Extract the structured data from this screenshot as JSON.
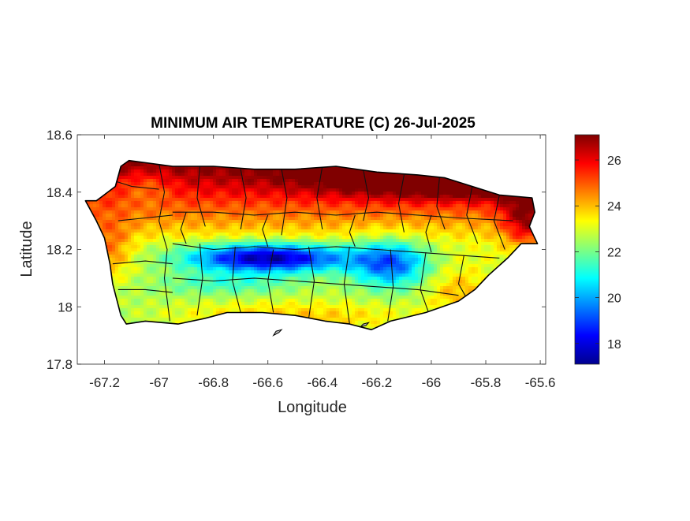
{
  "chart_data": {
    "type": "heatmap",
    "title": "MINIMUM AIR TEMPERATURE (C) 26-Jul-2025",
    "xlabel": "Longitude",
    "ylabel": "Latitude",
    "xlim": [
      -67.3,
      -65.58
    ],
    "ylim": [
      17.8,
      18.6
    ],
    "xticks": [
      -67.2,
      -67,
      -66.8,
      -66.6,
      -66.4,
      -66.2,
      -66,
      -65.8,
      -65.6
    ],
    "xtick_labels": [
      "-67.2",
      "-67",
      "-66.8",
      "-66.6",
      "-66.4",
      "-66.2",
      "-66",
      "-65.8",
      "-65.6"
    ],
    "yticks": [
      17.8,
      18,
      18.2,
      18.4,
      18.6
    ],
    "ytick_labels": [
      "17.8",
      "18",
      "18.2",
      "18.4",
      "18.6"
    ],
    "colorbar": {
      "colormap": "jet",
      "range": [
        17.1,
        27.1
      ],
      "ticks": [
        18,
        20,
        22,
        24,
        26
      ],
      "tick_labels": [
        "18",
        "20",
        "22",
        "24",
        "26"
      ]
    },
    "temperature_field": {
      "base": 23.2,
      "lat_gradient": 14,
      "ref_lat": 18.22,
      "features": [
        {
          "lon": -65.85,
          "lat": 18.45,
          "sx": 0.55,
          "sy": 0.07,
          "amp": 3.4
        },
        {
          "lon": -65.65,
          "lat": 18.3,
          "sx": 0.09,
          "sy": 0.1,
          "amp": 2.6
        },
        {
          "lon": -66.6,
          "lat": 18.17,
          "sx": 0.3,
          "sy": 0.05,
          "amp": -5.5
        },
        {
          "lon": -66.15,
          "lat": 18.15,
          "sx": 0.14,
          "sy": 0.08,
          "amp": -3.5
        },
        {
          "lon": -66.75,
          "lat": 18.08,
          "sx": 0.25,
          "sy": 0.04,
          "amp": -1.2
        },
        {
          "lon": -66.5,
          "lat": 17.96,
          "sx": 0.5,
          "sy": 0.06,
          "amp": 1.6
        },
        {
          "lon": -65.9,
          "lat": 18.05,
          "sx": 0.12,
          "sy": 0.08,
          "amp": 1.4
        },
        {
          "lon": -67.18,
          "lat": 18.2,
          "sx": 0.08,
          "sy": 0.1,
          "amp": 1.6
        },
        {
          "lon": -67.05,
          "lat": 18.42,
          "sx": 0.1,
          "sy": 0.06,
          "amp": -1.0
        }
      ]
    },
    "island_outline": [
      [
        -67.27,
        18.37
      ],
      [
        -67.23,
        18.37
      ],
      [
        -67.16,
        18.42
      ],
      [
        -67.14,
        18.49
      ],
      [
        -67.11,
        18.51
      ],
      [
        -66.95,
        18.49
      ],
      [
        -66.8,
        18.49
      ],
      [
        -66.65,
        18.48
      ],
      [
        -66.5,
        18.48
      ],
      [
        -66.35,
        18.49
      ],
      [
        -66.2,
        18.47
      ],
      [
        -66.05,
        18.46
      ],
      [
        -65.95,
        18.45
      ],
      [
        -65.85,
        18.42
      ],
      [
        -65.75,
        18.39
      ],
      [
        -65.63,
        18.38
      ],
      [
        -65.62,
        18.33
      ],
      [
        -65.64,
        18.28
      ],
      [
        -65.61,
        18.22
      ],
      [
        -65.67,
        18.22
      ],
      [
        -65.72,
        18.17
      ],
      [
        -65.79,
        18.11
      ],
      [
        -65.84,
        18.06
      ],
      [
        -65.9,
        18.02
      ],
      [
        -66.02,
        17.98
      ],
      [
        -66.15,
        17.95
      ],
      [
        -66.22,
        17.92
      ],
      [
        -66.3,
        17.94
      ],
      [
        -66.39,
        17.95
      ],
      [
        -66.5,
        17.97
      ],
      [
        -66.62,
        17.98
      ],
      [
        -66.75,
        17.98
      ],
      [
        -66.83,
        17.96
      ],
      [
        -66.93,
        17.94
      ],
      [
        -67.05,
        17.95
      ],
      [
        -67.12,
        17.94
      ],
      [
        -67.14,
        17.97
      ],
      [
        -67.17,
        18.08
      ],
      [
        -67.18,
        18.15
      ],
      [
        -67.2,
        18.24
      ],
      [
        -67.23,
        18.3
      ]
    ],
    "small_islets": [
      [
        [
          -66.58,
          17.9
        ],
        [
          -66.56,
          17.91
        ],
        [
          -66.55,
          17.92
        ],
        [
          -66.57,
          17.915
        ]
      ],
      [
        [
          -66.26,
          17.93
        ],
        [
          -66.24,
          17.935
        ],
        [
          -66.23,
          17.945
        ],
        [
          -66.25,
          17.94
        ]
      ]
    ],
    "municipal_boundaries": [
      [
        [
          -67.2,
          18.45
        ],
        [
          -67.1,
          18.42
        ],
        [
          -67.0,
          18.41
        ]
      ],
      [
        [
          -67.15,
          18.3
        ],
        [
          -67.05,
          18.31
        ],
        [
          -66.95,
          18.32
        ]
      ],
      [
        [
          -67.17,
          18.15
        ],
        [
          -67.05,
          18.16
        ],
        [
          -66.95,
          18.15
        ]
      ],
      [
        [
          -67.15,
          18.06
        ],
        [
          -67.05,
          18.06
        ],
        [
          -66.95,
          18.05
        ]
      ],
      [
        [
          -67.0,
          18.5
        ],
        [
          -66.98,
          18.4
        ],
        [
          -67.0,
          18.3
        ],
        [
          -66.97,
          18.2
        ],
        [
          -66.98,
          18.1
        ],
        [
          -66.96,
          17.95
        ]
      ],
      [
        [
          -66.85,
          18.49
        ],
        [
          -66.86,
          18.38
        ],
        [
          -66.83,
          18.28
        ]
      ],
      [
        [
          -66.7,
          18.48
        ],
        [
          -66.68,
          18.38
        ],
        [
          -66.7,
          18.27
        ]
      ],
      [
        [
          -66.55,
          18.48
        ],
        [
          -66.53,
          18.38
        ],
        [
          -66.55,
          18.25
        ]
      ],
      [
        [
          -66.4,
          18.49
        ],
        [
          -66.42,
          18.38
        ],
        [
          -66.4,
          18.27
        ]
      ],
      [
        [
          -66.25,
          18.48
        ],
        [
          -66.23,
          18.38
        ],
        [
          -66.25,
          18.3
        ]
      ],
      [
        [
          -66.1,
          18.46
        ],
        [
          -66.12,
          18.36
        ],
        [
          -66.1,
          18.26
        ]
      ],
      [
        [
          -65.97,
          18.45
        ],
        [
          -65.98,
          18.35
        ],
        [
          -65.95,
          18.27
        ]
      ],
      [
        [
          -65.85,
          18.42
        ],
        [
          -65.87,
          18.32
        ],
        [
          -65.83,
          18.22
        ]
      ],
      [
        [
          -65.75,
          18.39
        ],
        [
          -65.77,
          18.3
        ],
        [
          -65.73,
          18.2
        ]
      ],
      [
        [
          -66.95,
          18.33
        ],
        [
          -66.8,
          18.33
        ],
        [
          -66.65,
          18.32
        ],
        [
          -66.5,
          18.33
        ],
        [
          -66.35,
          18.32
        ],
        [
          -66.2,
          18.33
        ],
        [
          -66.05,
          18.32
        ],
        [
          -65.9,
          18.31
        ],
        [
          -65.7,
          18.3
        ]
      ],
      [
        [
          -66.95,
          18.22
        ],
        [
          -66.8,
          18.2
        ],
        [
          -66.65,
          18.21
        ],
        [
          -66.5,
          18.2
        ],
        [
          -66.35,
          18.21
        ],
        [
          -66.2,
          18.2
        ],
        [
          -66.05,
          18.19
        ],
        [
          -65.9,
          18.18
        ],
        [
          -65.75,
          18.17
        ]
      ],
      [
        [
          -66.95,
          18.1
        ],
        [
          -66.8,
          18.09
        ],
        [
          -66.65,
          18.1
        ],
        [
          -66.5,
          18.09
        ],
        [
          -66.35,
          18.08
        ],
        [
          -66.2,
          18.07
        ],
        [
          -66.05,
          18.06
        ],
        [
          -65.9,
          18.04
        ]
      ],
      [
        [
          -66.85,
          18.22
        ],
        [
          -66.84,
          18.1
        ],
        [
          -66.86,
          17.97
        ]
      ],
      [
        [
          -66.72,
          18.21
        ],
        [
          -66.73,
          18.09
        ],
        [
          -66.7,
          17.98
        ]
      ],
      [
        [
          -66.58,
          18.2
        ],
        [
          -66.6,
          18.09
        ],
        [
          -66.58,
          17.98
        ]
      ],
      [
        [
          -66.45,
          18.21
        ],
        [
          -66.43,
          18.09
        ],
        [
          -66.45,
          17.96
        ]
      ],
      [
        [
          -66.3,
          18.21
        ],
        [
          -66.32,
          18.08
        ],
        [
          -66.3,
          17.94
        ]
      ],
      [
        [
          -66.15,
          18.2
        ],
        [
          -66.14,
          18.07
        ],
        [
          -66.16,
          17.95
        ]
      ],
      [
        [
          -66.02,
          18.19
        ],
        [
          -66.04,
          18.06
        ],
        [
          -66.01,
          17.98
        ]
      ],
      [
        [
          -65.88,
          18.18
        ],
        [
          -65.9,
          18.08
        ],
        [
          -65.87,
          18.03
        ]
      ],
      [
        [
          -66.9,
          18.33
        ],
        [
          -66.92,
          18.27
        ],
        [
          -66.9,
          18.22
        ]
      ],
      [
        [
          -66.6,
          18.32
        ],
        [
          -66.62,
          18.27
        ],
        [
          -66.6,
          18.21
        ]
      ],
      [
        [
          -66.28,
          18.32
        ],
        [
          -66.3,
          18.26
        ],
        [
          -66.28,
          18.21
        ]
      ],
      [
        [
          -66.0,
          18.32
        ],
        [
          -66.02,
          18.26
        ],
        [
          -66.0,
          18.19
        ]
      ]
    ]
  }
}
